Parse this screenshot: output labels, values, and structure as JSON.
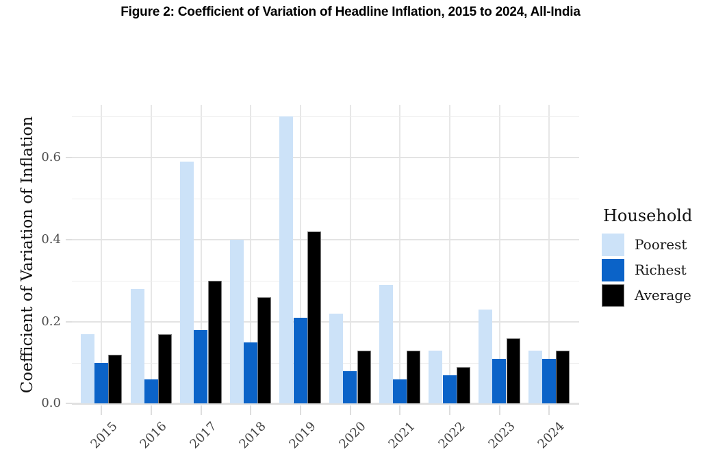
{
  "title": "Figure 2: Coefficient of Variation of Headline Inflation, 2015 to 2024, All-India",
  "chart_data": {
    "type": "bar",
    "categories": [
      "2015",
      "2016",
      "2017",
      "2018",
      "2019",
      "2020",
      "2021",
      "2022",
      "2023",
      "2024"
    ],
    "series": [
      {
        "name": "Poorest",
        "color": "#cce2f8",
        "values": [
          0.17,
          0.28,
          0.59,
          0.4,
          0.7,
          0.22,
          0.29,
          0.13,
          0.23,
          0.13
        ]
      },
      {
        "name": "Richest",
        "color": "#0b63c8",
        "values": [
          0.1,
          0.06,
          0.18,
          0.15,
          0.21,
          0.08,
          0.06,
          0.07,
          0.11,
          0.11
        ]
      },
      {
        "name": "Average",
        "color": "#000000",
        "border_color": "#7f7f7f",
        "values": [
          0.12,
          0.17,
          0.3,
          0.26,
          0.42,
          0.13,
          0.13,
          0.09,
          0.16,
          0.13
        ]
      }
    ],
    "xlabel": "",
    "ylabel": "Coefficient of Variation of Inflation",
    "ylim": [
      0,
      0.725
    ],
    "yticks": [
      0.0,
      0.2,
      0.4,
      0.6
    ],
    "ytick_labels": [
      "0.0",
      "0.2",
      "0.4",
      "0.6"
    ],
    "minor_yticks": [
      0.1,
      0.3,
      0.5,
      0.7
    ],
    "grid": true,
    "legend_title": "Household",
    "legend_position": "right"
  }
}
